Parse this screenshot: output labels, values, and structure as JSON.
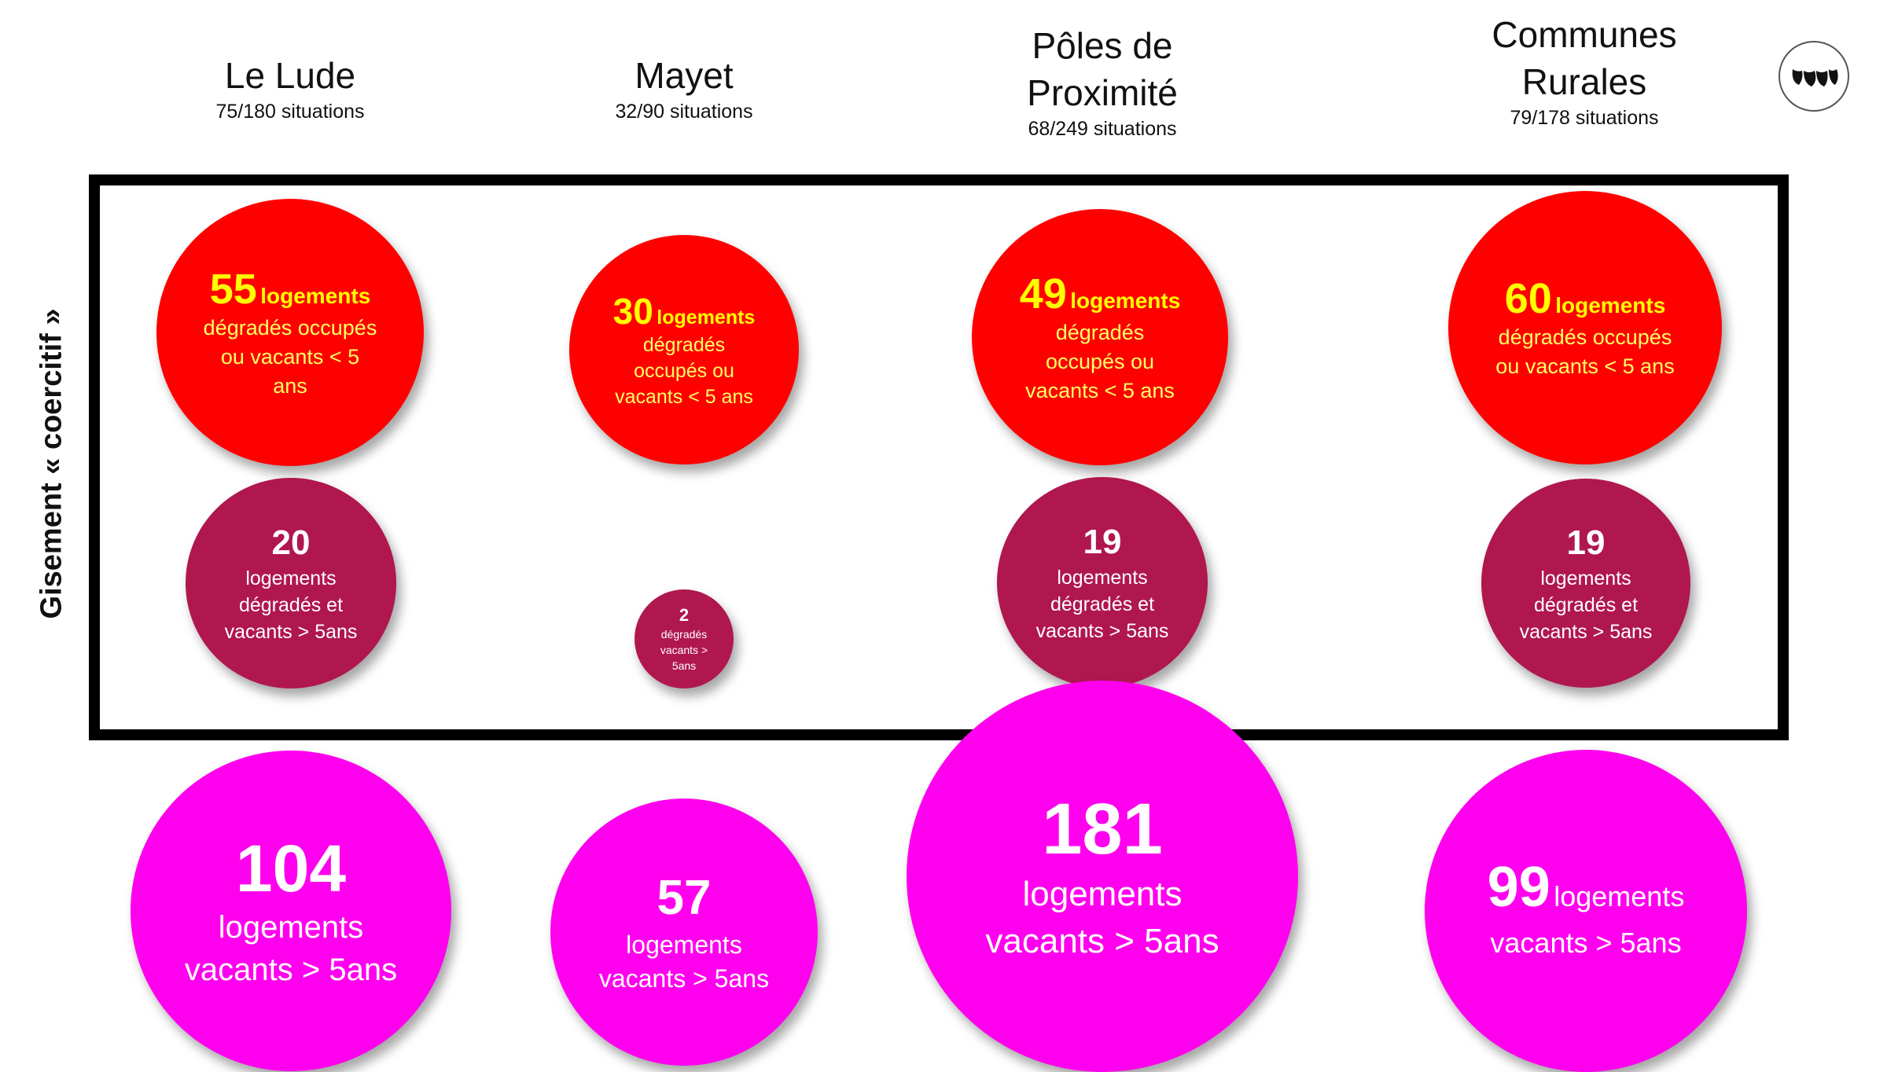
{
  "columns": [
    {
      "title": "Le Lude",
      "sub": "75/180 situations"
    },
    {
      "title": "Mayet",
      "sub": "32/90 situations"
    },
    {
      "title_line1": "Pôles de",
      "title_line2": "Proximité",
      "sub": "68/249 situations"
    },
    {
      "title_line1": "Communes",
      "title_line2": "Rurales",
      "sub": "79/178 situations"
    }
  ],
  "side_label": "Gisement « coercitif »",
  "colors": {
    "red": "#ff0000",
    "yellow": "#ffff00",
    "wine": "#b0174f",
    "magenta": "#ff00ee",
    "frame": "#000000"
  },
  "logo_icon": "leaf-logo-icon",
  "red_bubbles": [
    {
      "num": "55",
      "unit": "logements",
      "l1": "dégradés occupés",
      "l2": "ou vacants < 5",
      "l3": "ans"
    },
    {
      "num": "30",
      "unit": "logements",
      "l1": "dégradés",
      "l2": "occupés ou",
      "l3": "vacants < 5 ans"
    },
    {
      "num": "49",
      "unit": "logements",
      "l1": "dégradés",
      "l2": "occupés ou",
      "l3": "vacants < 5 ans"
    },
    {
      "num": "60",
      "unit": "logements",
      "l1": "dégradés occupés",
      "l2": "ou vacants < 5 ans"
    }
  ],
  "wine_bubbles": [
    {
      "num": "20",
      "l1": "logements",
      "l2": "dégradés et",
      "l3": "vacants > 5ans"
    },
    {
      "num": "2",
      "l1": "dégradés",
      "l2": "vacants >",
      "l3": "5ans"
    },
    {
      "num": "19",
      "l1": "logements",
      "l2": "dégradés et",
      "l3": "vacants > 5ans"
    },
    {
      "num": "19",
      "l1": "logements",
      "l2": "dégradés et",
      "l3": "vacants > 5ans"
    }
  ],
  "magenta_bubbles": [
    {
      "num": "104",
      "l1": "logements",
      "l2": "vacants > 5ans"
    },
    {
      "num": "57",
      "l1": "logements",
      "l2": "vacants > 5ans"
    },
    {
      "num": "181",
      "l1": "logements",
      "l2": "vacants > 5ans"
    },
    {
      "num": "99",
      "unit": "logements",
      "l2": "vacants > 5ans"
    }
  ]
}
